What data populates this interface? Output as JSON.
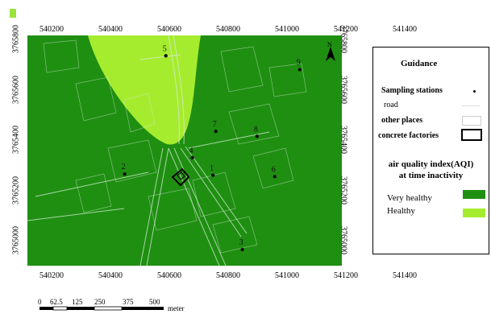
{
  "x_ticks": [
    "540200",
    "540400",
    "540600",
    "540800",
    "541000",
    "541200",
    "541400"
  ],
  "y_ticks": [
    "3765800",
    "3765600",
    "3765400",
    "3765200",
    "3765000"
  ],
  "stations": [
    {
      "label": "1",
      "x": 540740,
      "y": 3765260
    },
    {
      "label": "2",
      "x": 540440,
      "y": 3765265
    },
    {
      "label": "3",
      "x": 540840,
      "y": 3764965
    },
    {
      "label": "4",
      "x": 540670,
      "y": 3765330
    },
    {
      "label": "5",
      "x": 540580,
      "y": 3765735
    },
    {
      "label": "6",
      "x": 540950,
      "y": 3765255
    },
    {
      "label": "7",
      "x": 540750,
      "y": 3765435
    },
    {
      "label": "8",
      "x": 540890,
      "y": 3765415
    },
    {
      "label": "9",
      "x": 541035,
      "y": 3765680
    }
  ],
  "legend": {
    "title": "Guidance",
    "sampling": "Sampling stations",
    "road": "road",
    "other": "other places",
    "factories": "concrete factories",
    "aqi_line1": "air quality index(AQI)",
    "aqi_line2": "at time  inactivity",
    "classes": [
      {
        "label": "Very healthy",
        "color": "#1f8f12"
      },
      {
        "label": "Healthy",
        "color": "#a6ec2e"
      }
    ]
  },
  "north_label": "N",
  "scale": {
    "labels": [
      "0",
      "62.5",
      "125",
      "250",
      "375",
      "500"
    ],
    "unit": "meter"
  }
}
